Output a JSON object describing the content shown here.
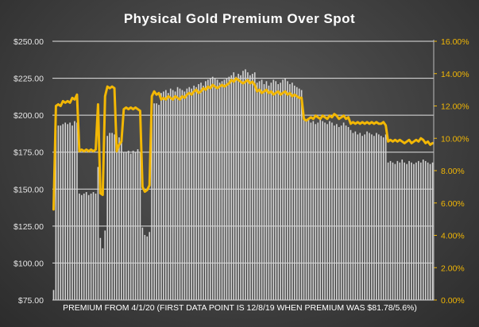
{
  "colors": {
    "bars": "#d4d4d4",
    "line": "#f2b705",
    "gridlines": "#ffffff",
    "left_axis_text": "#e6e6e6",
    "right_axis_text": "#f2b705",
    "title_text": "#ffffff"
  },
  "chart_data": {
    "type": "bar",
    "title": "Physical Gold Premium Over Spot",
    "xlabel": "PREMIUM FROM 4/1/20 (FIRST DATA POINT IS 12/8/19 WHEN PREMIUM WAS $81.78/5.6%)",
    "grid": true,
    "legend": "none",
    "left_axis": {
      "ylim": [
        75,
        250
      ],
      "ticks": [
        "$75.00",
        "$100.00",
        "$125.00",
        "$150.00",
        "$175.00",
        "$200.00",
        "$225.00",
        "$250.00"
      ]
    },
    "right_axis": {
      "ylim": [
        0,
        16
      ],
      "ticks": [
        "0.00%",
        "2.00%",
        "4.00%",
        "6.00%",
        "8.00%",
        "10.00%",
        "12.00%",
        "14.00%",
        "16.00%"
      ]
    },
    "series": [
      {
        "type": "bar",
        "axis": "left",
        "unit": "$",
        "values": [
          81.8,
          190,
          193,
          193,
          194,
          195,
          194,
          195,
          193,
          196,
          195,
          147,
          146,
          147,
          148,
          146,
          147,
          148,
          147,
          165,
          117,
          110,
          122,
          186,
          188,
          188,
          187,
          186,
          185,
          187,
          175,
          175,
          176,
          174,
          176,
          175,
          177,
          175,
          124,
          119,
          118,
          121,
          205,
          208,
          208,
          207,
          215,
          216,
          217,
          215,
          218,
          217,
          216,
          219,
          218,
          217,
          216,
          218,
          219,
          218,
          220,
          219,
          221,
          222,
          220,
          223,
          224,
          225,
          226,
          225,
          224,
          222,
          223,
          224,
          225,
          226,
          227,
          229,
          226,
          228,
          227,
          230,
          231,
          229,
          227,
          228,
          229,
          222,
          223,
          224,
          221,
          223,
          220,
          222,
          224,
          223,
          221,
          222,
          224,
          225,
          223,
          221,
          222,
          220,
          219,
          218,
          217,
          197,
          196,
          197,
          195,
          196,
          194,
          195,
          197,
          196,
          195,
          194,
          196,
          195,
          193,
          194,
          192,
          193,
          195,
          193,
          192,
          190,
          188,
          189,
          187,
          188,
          186,
          187,
          189,
          188,
          187,
          186,
          188,
          187,
          186,
          185,
          187,
          168,
          169,
          168,
          167,
          169,
          168,
          170,
          168,
          167,
          169,
          168,
          167,
          168,
          169,
          168,
          170,
          169,
          168,
          167,
          168
        ]
      },
      {
        "type": "line",
        "axis": "right",
        "unit": "%",
        "values": [
          5.6,
          12.0,
          12.1,
          12.0,
          12.3,
          12.2,
          12.3,
          12.2,
          12.5,
          12.4,
          12.7,
          9.2,
          9.3,
          9.2,
          9.3,
          9.2,
          9.3,
          9.2,
          9.3,
          12.1,
          6.6,
          6.5,
          12.6,
          13.2,
          13.1,
          13.2,
          13.1,
          9.2,
          9.6,
          9.8,
          11.8,
          11.9,
          11.8,
          11.9,
          11.8,
          11.9,
          11.8,
          11.7,
          7.0,
          6.7,
          6.8,
          7.1,
          12.6,
          12.9,
          12.7,
          12.8,
          12.4,
          12.5,
          12.4,
          12.6,
          12.5,
          12.4,
          12.6,
          12.5,
          12.4,
          12.6,
          12.5,
          12.7,
          12.8,
          12.7,
          12.9,
          13.0,
          12.8,
          12.9,
          13.1,
          13.0,
          13.2,
          13.1,
          13.3,
          13.2,
          13.1,
          13.2,
          13.3,
          13.2,
          13.3,
          13.4,
          13.6,
          13.5,
          13.7,
          13.6,
          13.5,
          13.4,
          13.5,
          13.6,
          13.4,
          13.5,
          13.3,
          12.9,
          13.0,
          12.8,
          12.9,
          13.0,
          12.8,
          12.9,
          12.7,
          12.8,
          12.9,
          12.7,
          12.8,
          12.9,
          12.7,
          12.8,
          12.6,
          12.7,
          12.6,
          12.5,
          12.5,
          11.2,
          11.1,
          11.2,
          11.3,
          11.2,
          11.4,
          11.3,
          11.2,
          11.4,
          11.3,
          11.2,
          11.4,
          11.3,
          11.5,
          11.4,
          11.2,
          11.3,
          11.4,
          11.2,
          11.3,
          10.9,
          11.0,
          10.9,
          11.0,
          10.9,
          11.0,
          10.9,
          11.0,
          10.9,
          11.0,
          10.9,
          11.0,
          10.9,
          10.9,
          11.0,
          10.8,
          9.8,
          9.9,
          9.8,
          9.9,
          9.8,
          9.9,
          9.8,
          9.7,
          9.8,
          9.9,
          9.7,
          9.8,
          9.9,
          9.8,
          10.0,
          9.9,
          9.7,
          9.8,
          9.6,
          9.7
        ]
      }
    ]
  }
}
